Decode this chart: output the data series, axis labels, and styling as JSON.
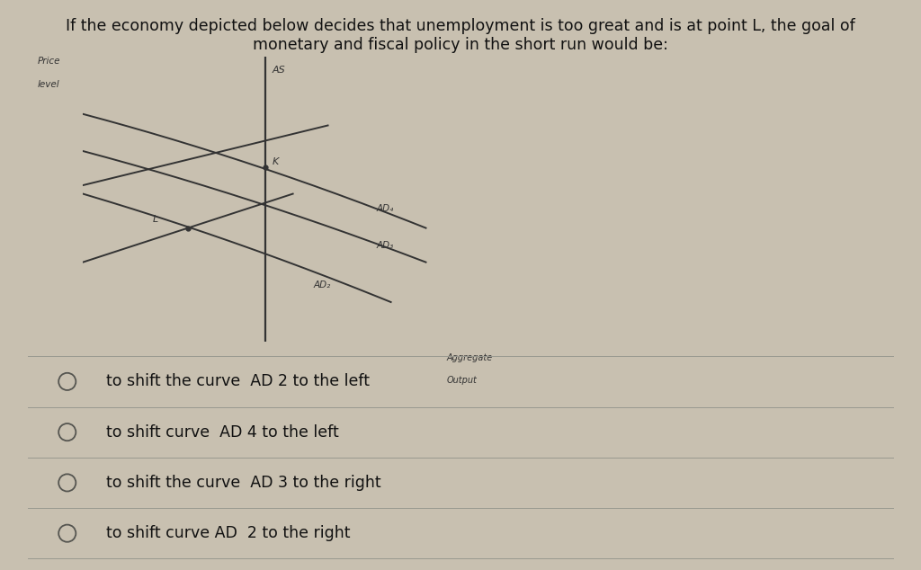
{
  "background_color": "#c8c0b0",
  "title_text_line1": "If the economy depicted below decides that unemployment is too great and is at point L, the goal of",
  "title_text_line2": "monetary and fiscal policy in the short run would be:",
  "title_fontsize": 12.5,
  "title_color": "#111111",
  "graph_bg": "#c8c0b0",
  "ylabel_line1": "Price",
  "ylabel_line2": "level",
  "xlabel_line1": "Aggregate",
  "xlabel_line2": "Output",
  "as_label": "AS",
  "point_K_label": "K",
  "point_L_label": "L",
  "options": [
    "to shift the curve  AD 2 to the left",
    "to shift curve  AD 4 to the left",
    "to shift the curve  AD 3 to the right",
    "to shift curve AD  2 to the right"
  ],
  "option_fontsize": 12.5,
  "divider_color": "#999990",
  "text_color": "#111111",
  "circle_color": "#555550",
  "line_color": "#333333",
  "label_color": "#333333"
}
